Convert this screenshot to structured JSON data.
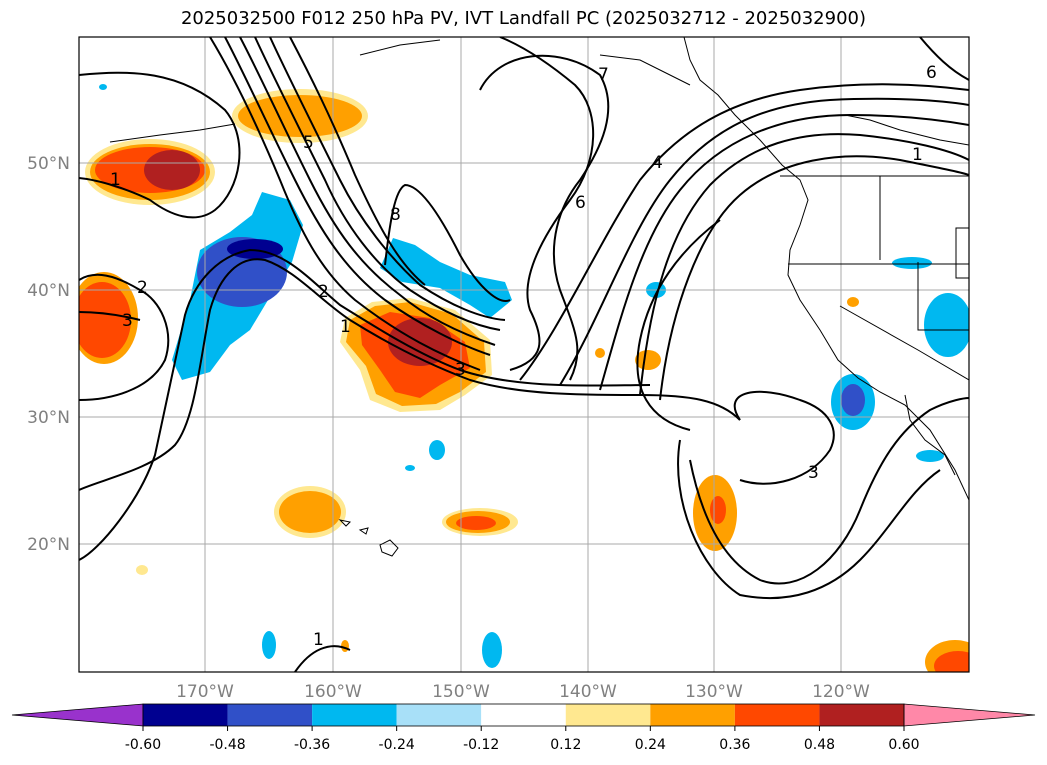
{
  "title": "2025032500 F012 250 hPa PV, IVT Landfall PC (2025032712 - 2025032900)",
  "map": {
    "lon_labels": [
      "170°W",
      "160°W",
      "150°W",
      "140°W",
      "130°W",
      "120°W"
    ],
    "lat_labels": [
      "50°N",
      "40°N",
      "30°N",
      "20°N"
    ],
    "grid": true
  },
  "colorbar": {
    "extend": "both",
    "levels": [
      "-0.60",
      "-0.48",
      "-0.36",
      "-0.24",
      "-0.12",
      "0.12",
      "0.24",
      "0.36",
      "0.48",
      "0.60"
    ],
    "colors": [
      "#9932cc",
      "#000090",
      "#3050c8",
      "#00b8f0",
      "#a8e0f8",
      "#ffffff",
      "#ffe890",
      "#ffa000",
      "#ff4800",
      "#b02020",
      "#ff88a8"
    ]
  },
  "contour_labels": [
    "1",
    "2",
    "3",
    "5",
    "7",
    "8",
    "6",
    "4",
    "2",
    "1",
    "3",
    "1",
    "6",
    "3",
    "1"
  ],
  "colors": {
    "blue_dark": "#000090",
    "blue_mid": "#3050c8",
    "blue_light": "#00b8f0",
    "blue_pale": "#a8e0f8",
    "yellow": "#ffe890",
    "orange": "#ffa000",
    "orange_red": "#ff4800",
    "dark_red": "#b02020"
  }
}
